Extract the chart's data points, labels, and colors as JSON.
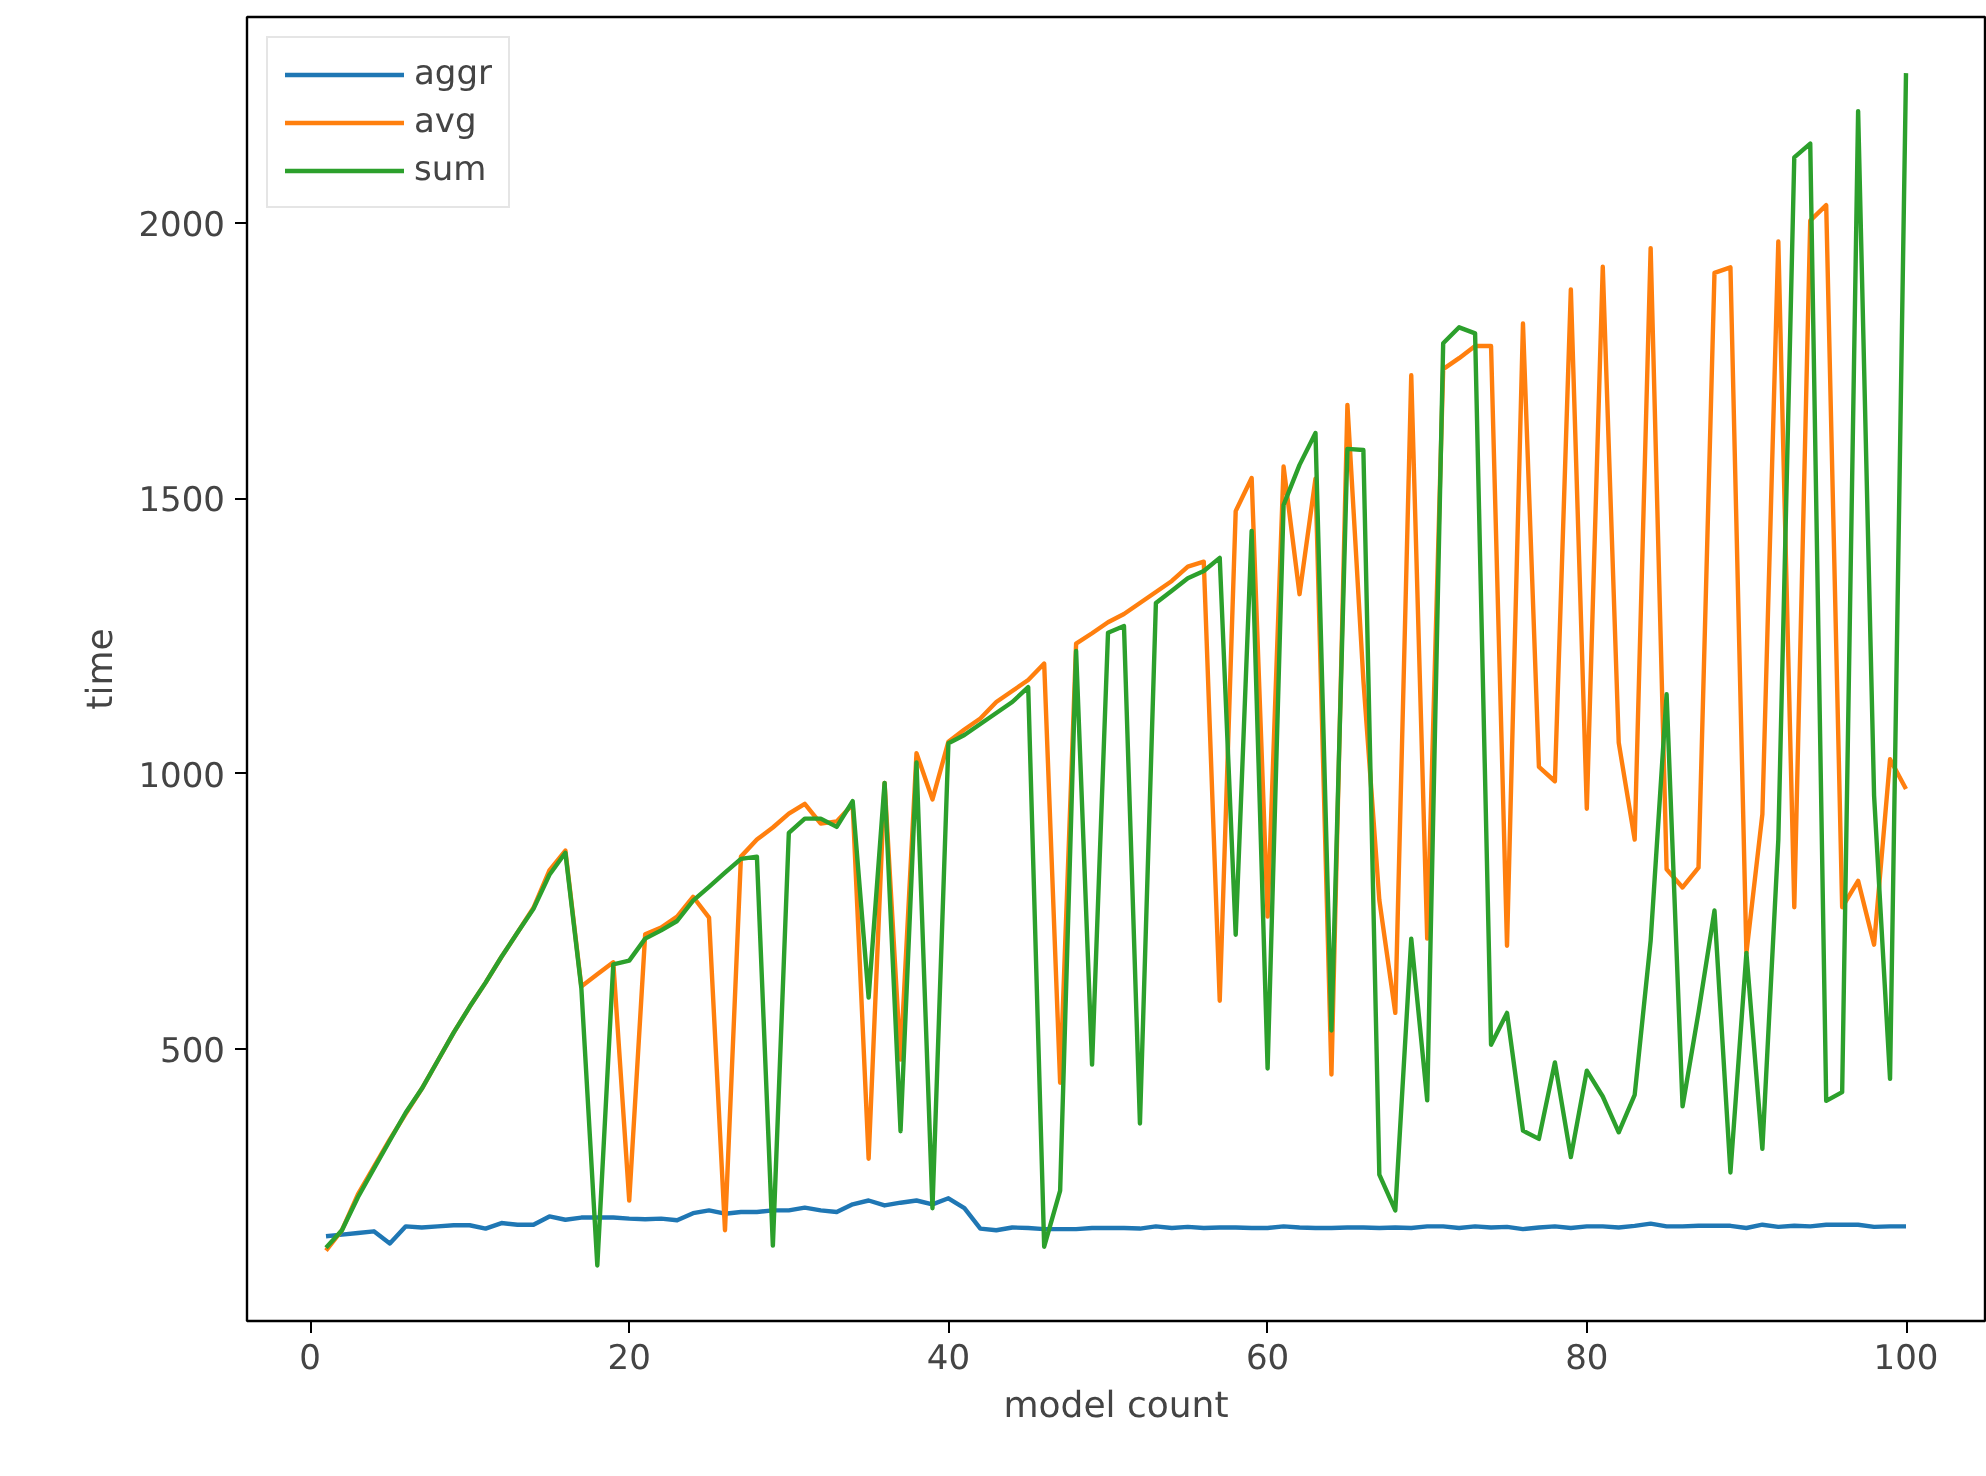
{
  "chart_data": {
    "type": "line",
    "xlabel": "model count",
    "ylabel": "time",
    "x": [
      1,
      2,
      3,
      4,
      5,
      6,
      7,
      8,
      9,
      10,
      11,
      12,
      13,
      14,
      15,
      16,
      17,
      18,
      19,
      20,
      21,
      22,
      23,
      24,
      25,
      26,
      27,
      28,
      29,
      30,
      31,
      32,
      33,
      34,
      35,
      36,
      37,
      38,
      39,
      40,
      41,
      42,
      43,
      44,
      45,
      46,
      47,
      48,
      49,
      50,
      51,
      52,
      53,
      54,
      55,
      56,
      57,
      58,
      59,
      60,
      61,
      62,
      63,
      64,
      65,
      66,
      67,
      68,
      69,
      70,
      71,
      72,
      73,
      74,
      75,
      76,
      77,
      78,
      79,
      80,
      81,
      82,
      83,
      84,
      85,
      86,
      87,
      88,
      89,
      90,
      91,
      92,
      93,
      94,
      95,
      96,
      97,
      98,
      99,
      100
    ],
    "xlim": [
      -3.95,
      104.95
    ],
    "xticks": [
      0,
      20,
      40,
      60,
      80,
      100
    ],
    "ylim": [
      5,
      2375
    ],
    "yticks": [
      500,
      1000,
      1500,
      2000
    ],
    "grid": false,
    "legend": "top left",
    "line_style": "solid",
    "marker": "none",
    "series": [
      {
        "name": "aggr",
        "color": "#1f77b4",
        "values": [
          159,
          162,
          165,
          168,
          146,
          177,
          175,
          177,
          179,
          179,
          173,
          183,
          180,
          180,
          195,
          189,
          193,
          193,
          193,
          191,
          190,
          191,
          188,
          201,
          206,
          200,
          203,
          203,
          206,
          206,
          211,
          206,
          203,
          217,
          224,
          215,
          220,
          224,
          217,
          228,
          210,
          173,
          170,
          175,
          174,
          172,
          172,
          172,
          174,
          174,
          174,
          173,
          177,
          174,
          176,
          174,
          175,
          175,
          174,
          174,
          177,
          175,
          174,
          174,
          175,
          175,
          174,
          175,
          174,
          177,
          177,
          174,
          177,
          175,
          176,
          172,
          175,
          177,
          174,
          177,
          177,
          175,
          178,
          182,
          177,
          177,
          178,
          178,
          178,
          174,
          180,
          176,
          178,
          177,
          180,
          180,
          180,
          176,
          177,
          177
        ]
      },
      {
        "name": "avg",
        "color": "#ff7f0e",
        "values": [
          133,
          170,
          235,
          285,
          335,
          382,
          427,
          478,
          529,
          576,
          620,
          667,
          711,
          756,
          824,
          860,
          613,
          635,
          657,
          224,
          708,
          720,
          740,
          776,
          738,
          170,
          849,
          880,
          902,
          927,
          945,
          909,
          913,
          944,
          300,
          983,
          480,
          1037,
          953,
          1058,
          1080,
          1100,
          1130,
          1150,
          1170,
          1200,
          438,
          1236,
          1255,
          1275,
          1290,
          1310,
          1330,
          1350,
          1376,
          1385,
          587,
          1477,
          1537,
          740,
          1558,
          1326,
          1536,
          453,
          1670,
          1170,
          770,
          565,
          1724,
          700,
          1735,
          1755,
          1777,
          1777,
          687,
          1818,
          1012,
          986,
          1880,
          936,
          1921,
          1056,
          880,
          1955,
          826,
          793,
          829,
          1910,
          1920,
          674,
          926,
          1967,
          757,
          2005,
          2033,
          757,
          805,
          689,
          1026,
          972
        ]
      },
      {
        "name": "sum",
        "color": "#2ca02c",
        "values": [
          138,
          170,
          230,
          282,
          333,
          384,
          427,
          478,
          529,
          576,
          620,
          667,
          711,
          754,
          816,
          856,
          610,
          106,
          653,
          660,
          700,
          715,
          732,
          769,
          794,
          820,
          845,
          849,
          142,
          892,
          918,
          918,
          903,
          950,
          593,
          983,
          350,
          1020,
          210,
          1055,
          1070,
          1090,
          1110,
          1130,
          1157,
          140,
          242,
          1223,
          471,
          1256,
          1268,
          364,
          1310,
          1332,
          1355,
          1368,
          1392,
          707,
          1441,
          464,
          1488,
          1561,
          1619,
          533,
          1590,
          1588,
          271,
          206,
          700,
          406,
          1782,
          1811,
          1800,
          507,
          565,
          351,
          336,
          475,
          303,
          460,
          413,
          348,
          416,
          696,
          1144,
          395,
          566,
          751,
          275,
          674,
          318,
          880,
          2120,
          2145,
          405,
          421,
          2204,
          960,
          445,
          2273
        ]
      }
    ]
  }
}
